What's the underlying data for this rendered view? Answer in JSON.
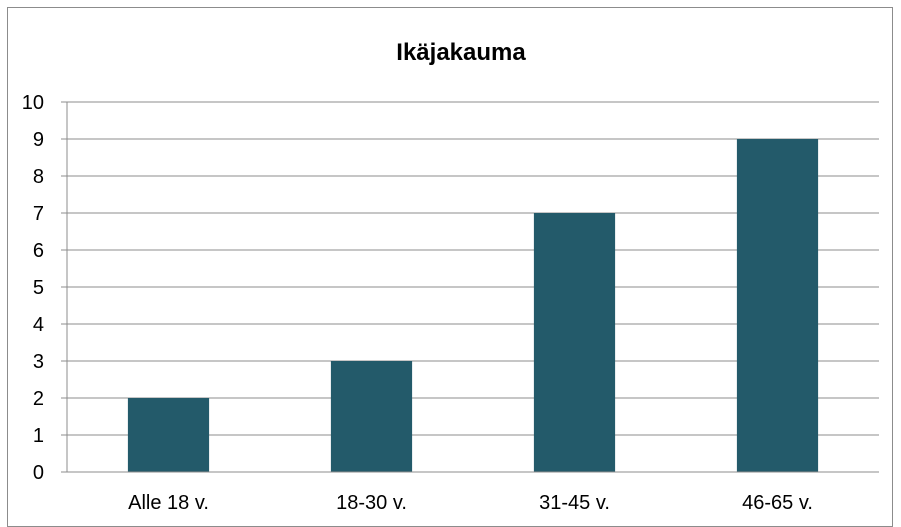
{
  "chart_data": {
    "type": "bar",
    "title": "Ikäjakauma",
    "categories": [
      "Alle 18 v.",
      "18-30 v.",
      "31-45 v.",
      "46-65 v."
    ],
    "values": [
      2,
      3,
      7,
      9
    ],
    "ylim": [
      0,
      10
    ],
    "yticks": [
      0,
      1,
      2,
      3,
      4,
      5,
      6,
      7,
      8,
      9,
      10
    ],
    "grid": true,
    "legend": "none",
    "colors": {
      "bar": "#235a6a",
      "grid": "#8c8c8c",
      "axis": "#8c8c8c",
      "border": "#8c8c8c"
    }
  }
}
